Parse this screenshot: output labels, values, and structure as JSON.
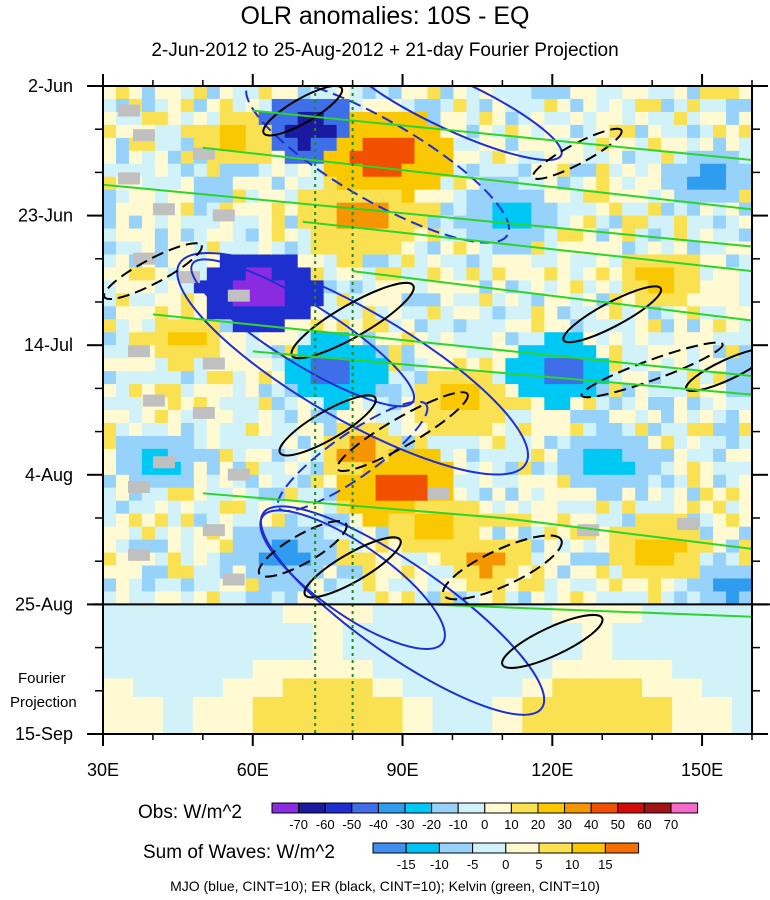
{
  "title": "OLR anomalies: 10S - EQ",
  "subtitle": "2-Jun-2012 to 25-Aug-2012 + 21-day Fourier Projection",
  "colors": {
    "mjo": "#1f2fd2",
    "er": "#000000",
    "kelvin": "#2cd42c",
    "marker_lines": "#1f8a1f",
    "missing": "#c0c0c0"
  },
  "chart_data": {
    "type": "heatmap",
    "xlabel": "",
    "ylabel": "",
    "x_range": [
      30,
      160
    ],
    "x_ticks": [
      30,
      60,
      90,
      120,
      150
    ],
    "x_tick_labels": [
      "30E",
      "60E",
      "90E",
      "120E",
      "150E"
    ],
    "y_ticks": [
      {
        "label": "2-Jun",
        "day": 0
      },
      {
        "label": "23-Jun",
        "day": 21
      },
      {
        "label": "14-Jul",
        "day": 42
      },
      {
        "label": "4-Aug",
        "day": 63
      },
      {
        "label": "25-Aug",
        "day": 84
      },
      {
        "label": "15-Sep",
        "day": 105
      }
    ],
    "obs_end_day": 84,
    "vertical_markers_lon": [
      72.5,
      80
    ],
    "projection_label": [
      "Fourier",
      "Projection"
    ],
    "colorbars": [
      {
        "name": "Obs: W/m^2",
        "levels": [
          -70,
          -60,
          -50,
          -40,
          -30,
          -20,
          -10,
          0,
          10,
          20,
          30,
          40,
          50,
          60,
          70
        ],
        "colors": [
          "#8a2be2",
          "#1a1aa0",
          "#1e2fd0",
          "#3f6fe8",
          "#2f9cf0",
          "#00c8f5",
          "#96d2fa",
          "#d2f2fa",
          "#fffad2",
          "#fae152",
          "#fac800",
          "#f59600",
          "#f05000",
          "#d20a0a",
          "#a01414",
          "#f569c8"
        ]
      },
      {
        "name": "Sum of Waves: W/m^2",
        "levels": [
          -15,
          -10,
          -5,
          0,
          5,
          10,
          15
        ],
        "colors": [
          "#3f8ef0",
          "#00c3f5",
          "#96d2fa",
          "#d2f2fa",
          "#fffad2",
          "#fae152",
          "#fac800",
          "#f56e00"
        ]
      }
    ],
    "wave_legend": "MJO (blue, CINT=10); ER (black, CINT=10); Kelvin (green, CINT=10)"
  }
}
